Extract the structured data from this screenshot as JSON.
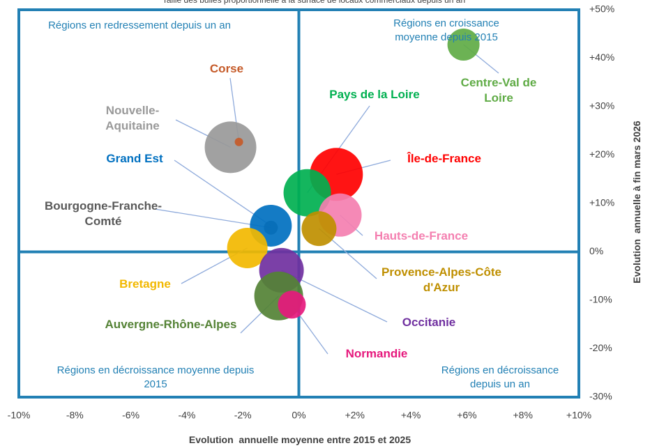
{
  "chart_data": {
    "type": "bubble",
    "subtitle": "Taille des bulles proportionnelle à la surface de locaux commerciaux depuis un an",
    "xlabel": "Evolution  annuelle moyenne entre 2015 et 2025",
    "ylabel": "Evolution  annuelle à fin mars 2026",
    "annotations": [
      "Régions en redressement depuis un an",
      "Régions en croissance moyenne depuis 2015",
      "Régions en décroissance  moyenne depuis 2015",
      "Régions en décroissance depuis un an"
    ],
    "xlim": [
      -10,
      10
    ],
    "xticks": [
      {
        "value": -10,
        "label": "-10%"
      },
      {
        "value": -8,
        "label": "-8%"
      },
      {
        "value": -6,
        "label": "-6%"
      },
      {
        "value": -4,
        "label": "-4%"
      },
      {
        "value": -2,
        "label": "-2%"
      },
      {
        "value": 0,
        "label": "0%"
      },
      {
        "value": 2,
        "label": "+2%"
      },
      {
        "value": 4,
        "label": "+4%"
      },
      {
        "value": 6,
        "label": "+6%"
      },
      {
        "value": 8,
        "label": "+8%"
      },
      {
        "value": 10,
        "label": "+10%"
      }
    ],
    "ylim": [
      -30,
      50
    ],
    "yticks": [
      {
        "value": -30,
        "label": "-30%"
      },
      {
        "value": -20,
        "label": "-20%"
      },
      {
        "value": -10,
        "label": "-10%"
      },
      {
        "value": 0,
        "label": "0%"
      },
      {
        "value": 10,
        "label": "+10%"
      },
      {
        "value": 20,
        "label": "+20%"
      },
      {
        "value": 30,
        "label": "+30%"
      },
      {
        "value": 40,
        "label": "+40%"
      },
      {
        "value": 50,
        "label": "+50%"
      }
    ],
    "series": [
      {
        "name": "Nouvelle-Aquitaine",
        "color": "#999999",
        "x": -2.44,
        "y": 21.6,
        "size": 1369
      },
      {
        "name": "Corse",
        "color": "#c55a28",
        "x": -2.14,
        "y": 22.7,
        "size": 36
      },
      {
        "name": "Bourgogne-Franche-Comté",
        "color": "#595959",
        "x": -1.0,
        "y": 5.0,
        "size": 100
      },
      {
        "name": "Grand Est",
        "color": "#0070c0",
        "x": -1.0,
        "y": 5.4,
        "size": 900
      },
      {
        "name": "Bretagne",
        "color": "#f2b800",
        "x": -1.84,
        "y": 0.8,
        "size": 841
      },
      {
        "name": "Île-de-France",
        "color": "#ff0000",
        "x": 1.34,
        "y": 16.0,
        "size": 1444
      },
      {
        "name": "Pays de la Loire",
        "color": "#00b050",
        "x": 0.3,
        "y": 12.2,
        "size": 1156
      },
      {
        "name": "Hauts-de-France",
        "color": "#f47fb0",
        "x": 1.47,
        "y": 7.6,
        "size": 961
      },
      {
        "name": "Provence-Alpes-Côte d'Azur",
        "color": "#bf8f00",
        "x": 0.72,
        "y": 4.8,
        "size": 625
      },
      {
        "name": "Occitanie",
        "color": "#7030a0",
        "x": -0.62,
        "y": -3.8,
        "size": 1024
      },
      {
        "name": "Auvergne-Rhône-Alpes",
        "color": "#548235",
        "x": -0.72,
        "y": -9.1,
        "size": 1225
      },
      {
        "name": "Normandie",
        "color": "#e6197d",
        "x": -0.25,
        "y": -10.9,
        "size": 400
      },
      {
        "name": "Centre-Val de Loire",
        "color": "#5fab45",
        "x": 5.88,
        "y": 42.8,
        "size": 529
      }
    ]
  }
}
